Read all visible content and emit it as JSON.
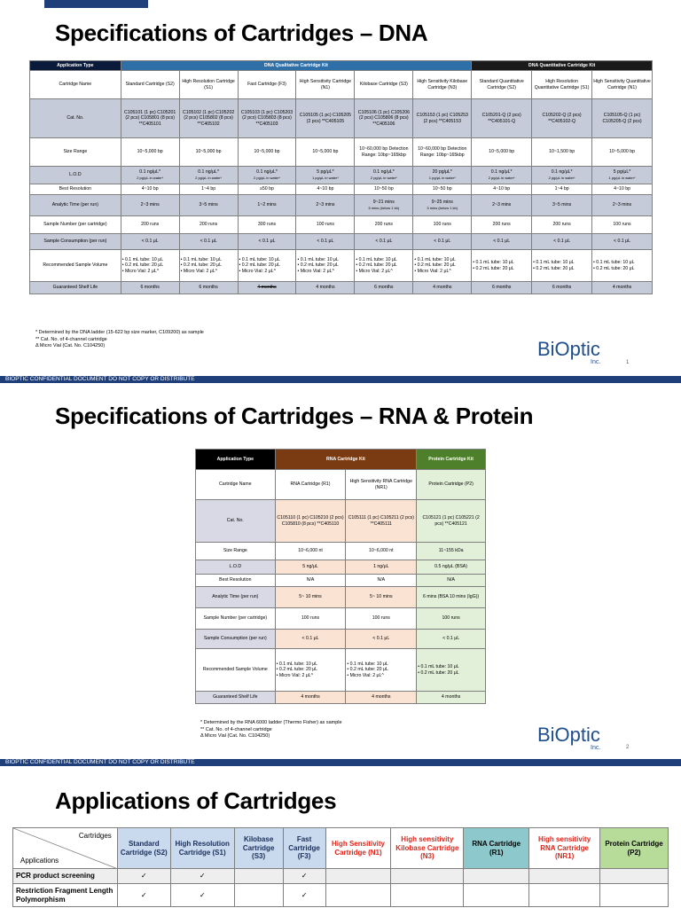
{
  "slide1": {
    "title": "Specifications of Cartridges – DNA",
    "header": {
      "app_type": "Application Type",
      "qual_kit": "DNA Qualitative Cartridge Kit",
      "quant_kit": "DNA Quantitative Cartridge Kit"
    },
    "rows": [
      {
        "label": "Cartridge Name",
        "cells": [
          "Standard Cartridge (S2)",
          "High Resolution Cartridge (S1)",
          "Fast Cartridge (F3)",
          "High Sensitivity Cartridge (N1)",
          "Kilobase Cartridge (S3)",
          "High Sensitivity Kilobase Cartridge (N3)",
          "Standard Quantitative Cartridge (S2)",
          "High Resolution Quantitative Cartridge (S1)",
          "High Sensitivity Quantitative Cartridge (N1)"
        ]
      },
      {
        "label": "Cat. No.",
        "cells": [
          "C105101 (1 pc) C105201 (2 pcs) C105801 (8 pcs) **C405101",
          "C105102 (1 pc) C105202 (2 pcs) C105802 (8 pcs) **C405102",
          "C105103 (1 pc) C105203 (2 pcs) C105803 (8 pcs) **C405103",
          "C105105 (1 pc) C105205 (2 pcs) **C405105",
          "C105106 (1 pc) C105206 (2 pcs) C105806 (8 pcs) **C405106",
          "C105153 (1 pc) C105253 (2 pcs) **C405153",
          "C105201-Q (2 pcs) **C405101-Q",
          "C105202-Q (2 pcs) **C405102-Q",
          "C105105-Q (1 pc) C105205-Q (2 pcs)"
        ]
      },
      {
        "label": "Size Range",
        "cells": [
          "10~5,000 bp",
          "10~5,000 bp",
          "10~5,000 bp",
          "10~5,000 bp",
          "10~60,000 bp Detection Range: 10bp~165kbp",
          "10~60,000 bp Detection Range: 10bp~165kbp",
          "10~5,000 bp",
          "10~1,500 bp",
          "10~5,000 bp"
        ]
      },
      {
        "label": "L.O.D",
        "cells": [
          "0.1 ng/μL*",
          "0.1 ng/μL*",
          "0.1 ng/μL*",
          "5 pg/μL*",
          "0.1 ng/μL*",
          "20 pg/μL*",
          "0.1 ng/μL*",
          "0.1 ng/μL*",
          "5 pg/μL*"
        ],
        "subs": [
          "2 pg/μL in water*",
          "2 pg/μL in water*",
          "2 pg/μL in water*",
          "1 pg/μL in water*",
          "2 pg/μL in water*",
          "1 pg/μL in water*",
          "2 pg/μL in water*",
          "2 pg/μL in water*",
          "1 pg/μL in water*"
        ]
      },
      {
        "label": "Best Resolution",
        "cells": [
          "4~10 bp",
          "1~4 bp",
          "≥50 bp",
          "4~10 bp",
          "10~50 bp",
          "10~50 bp",
          "4~10 bp",
          "1~4 bp",
          "4~10 bp"
        ]
      },
      {
        "label": "Analytic Time (per run)",
        "cells": [
          "2~3 mins",
          "3~5 mins",
          "1~2 mins",
          "2~3 mins",
          "9~21 mins",
          "9~25 mins",
          "2~3 mins",
          "3~5 mins",
          "2~3 mins"
        ],
        "subs": [
          "",
          "",
          "",
          "",
          "5 mins (below 1 kb)",
          "3 mins (below 1 kb)",
          "",
          "",
          ""
        ]
      },
      {
        "label": "Sample Number (per cartridge)",
        "cells": [
          "200 runs",
          "200 runs",
          "300 runs",
          "100 runs",
          "200 runs",
          "100 runs",
          "200 runs",
          "200 runs",
          "100 runs"
        ]
      },
      {
        "label": "Sample Consumption (per run)",
        "cells": [
          "< 0.1 μL",
          "< 0.1 μL",
          "< 0.1 μL",
          "< 0.1 μL",
          "< 0.1 μL",
          "< 0.1 μL",
          "< 0.1 μL",
          "< 0.1 μL",
          "< 0.1 μL"
        ]
      },
      {
        "label": "Recommended Sample Volume",
        "cells": [
          "• 0.1 mL tube: 10 μL\n• 0.2 mL tube: 20 μL\n• Micro Vial: 2 μL^",
          "• 0.1 mL tube: 10 μL\n• 0.2 mL tube: 20 μL\n• Micro Vial: 2 μL^",
          "• 0.1 mL tube: 10 μL\n• 0.2 mL tube: 20 μL\n• Micro Vial: 2 μL^",
          "• 0.1 mL tube: 10 μL\n• 0.2 mL tube: 20 μL\n• Micro Vial: 2 μL^",
          "• 0.1 mL tube: 10 μL\n• 0.2 mL tube: 20 μL\n• Micro Vial: 2 μL^",
          "• 0.1 mL tube: 10 μL\n• 0.2 mL tube: 20 μL\n• Micro Vial: 2 μL^",
          "• 0.1 mL tube: 10 μL\n• 0.2 mL tube: 20 μL",
          "• 0.1 mL tube: 10 μL\n• 0.2 mL tube: 20 μL",
          "• 0.1 mL tube: 10 μL\n• 0.2 mL tube: 20 μL"
        ]
      },
      {
        "label": "Guaranteed Shelf Life",
        "cells": [
          "6 months",
          "6 months",
          "4 months",
          "4 months",
          "6 months",
          "4 months",
          "6 months",
          "6 months",
          "4 months"
        ]
      }
    ],
    "footnotes": [
      "* Determined by the DNA ladder (15-622 bp size marker, C109200) as sample",
      "** Cat. No. of 4-channel cartridge",
      "Δ Micro Vial (Cat. No. C104250)"
    ],
    "logo": "BiOptic",
    "logo_inc": "Inc.",
    "page": "1",
    "confidential": "BIOPTIC CONFIDENTIAL DOCUMENT DO NOT COPY OR DISTRIBUTE"
  },
  "slide2": {
    "title": "Specifications of Cartridges – RNA & Protein",
    "header": {
      "app_type": "Application Type",
      "rna_kit": "RNA Cartridge Kit",
      "protein_kit": "Protein Cartridge Kit"
    },
    "rows": [
      {
        "label": "Cartridge Name",
        "cells": [
          "RNA Cartridge (R1)",
          "High Sensitivity RNA Cartridge (NR1)",
          "Protein Cartridge (P2)"
        ]
      },
      {
        "label": "Cat. No.",
        "cells": [
          "C105110 (1 pc) C105210 (2 pcs) C105810 (8 pcs) **C405110",
          "C105111 (1 pc) C105211 (2 pcs) **C405111",
          "C105121 (1 pc) C105221 (2 pcs) **C405121"
        ]
      },
      {
        "label": "Size Range",
        "cells": [
          "10~6,000 nt",
          "10~6,000 nt",
          "11~155 kDa"
        ]
      },
      {
        "label": "L.O.D",
        "cells": [
          "5 ng/μL",
          "1 ng/μL",
          "0.5 ng/μL (BSA)"
        ]
      },
      {
        "label": "Best Resolution",
        "cells": [
          "N/A",
          "N/A",
          "N/A"
        ]
      },
      {
        "label": "Analytic Time (per run)",
        "cells": [
          "5~ 10 mins",
          "5~ 10 mins",
          "6 mins (BSA 10 mins (IgG))"
        ]
      },
      {
        "label": "Sample Number (per cartridge)",
        "cells": [
          "100 runs",
          "100 runs",
          "100 runs"
        ]
      },
      {
        "label": "Sample Consumption (per run)",
        "cells": [
          "< 0.1 μL",
          "< 0.1 μL",
          "< 0.1 μL"
        ]
      },
      {
        "label": "Recommended Sample Volume",
        "cells": [
          "• 0.1 mL tube: 10 μL\n• 0.2 mL tube: 20 μL\n• Micro Vial: 2 μL^",
          "• 0.1 mL tube: 10 μL\n• 0.2 mL tube: 20 μL\n• Micro Vial: 2 μL^",
          "• 0.1 mL tube: 10 μL\n• 0.2 mL tube: 20 μL"
        ]
      },
      {
        "label": "Guaranteed Shelf Life",
        "cells": [
          "4 months",
          "4 months",
          "4 months"
        ]
      }
    ],
    "footnotes": [
      "* Determined by the RNA 6000 ladder (Thermo Fisher) as sample",
      "** Cat. No. of 4-channel cartridge",
      "Δ Micro Vial (Cat. No. C104250)"
    ],
    "logo": "BiOptic",
    "logo_inc": "Inc.",
    "page": "2",
    "confidential": "BIOPTIC CONFIDENTIAL DOCUMENT DO NOT COPY OR DISTRIBUTE"
  },
  "slide3": {
    "title": "Applications of Cartridges",
    "corner_top": "Cartridges",
    "corner_bottom": "Applications",
    "columns": [
      "Standard Cartridge (S2)",
      "High Resolution Cartridge (S1)",
      "Kilobase Cartridge (S3)",
      "Fast Cartridge (F3)",
      "High Sensitivity Cartridge (N1)",
      "High sensitivity Kilobase Cartridge (N3)",
      "RNA Cartridge (R1)",
      "High sensitivity RNA Cartridge (NR1)",
      "Protein Cartridge (P2)"
    ],
    "rows": [
      {
        "label": "PCR product screening",
        "cells": [
          "✓",
          "✓",
          "",
          "✓",
          "",
          "",
          "",
          "",
          ""
        ]
      },
      {
        "label": "Restriction Fragment Length Polymorphism",
        "cells": [
          "✓",
          "✓",
          "",
          "✓",
          "",
          "",
          "",
          "",
          ""
        ]
      }
    ]
  }
}
